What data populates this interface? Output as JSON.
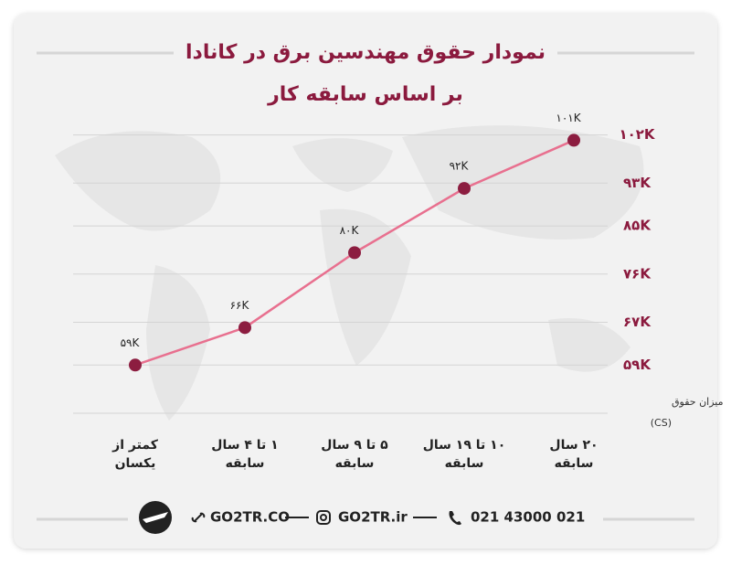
{
  "chart_data": {
    "type": "line",
    "title": "نمودار حقوق مهندسین برق در کانادا",
    "subtitle": "بر اساس سابقه کار",
    "categories": [
      [
        "کمتر از",
        "یکسان"
      ],
      [
        "۱ تا ۴ سال",
        "سابقه"
      ],
      [
        "۵ تا ۹ سال",
        "سابقه"
      ],
      [
        "۱۰ تا ۱۹ سال",
        "سابقه"
      ],
      [
        "۲۰ سال",
        "سابقه"
      ]
    ],
    "values": [
      59000,
      66000,
      80000,
      92000,
      101000
    ],
    "value_labels": [
      "۵۹K",
      "۶۶K",
      "۸۰K",
      "۹۲K",
      "۱۰۱K"
    ],
    "color": "#e8708f",
    "point_color": "#8c1d40",
    "y_label": [
      "میزان حقوق",
      "(CS)"
    ],
    "ylim": [
      50000,
      105000
    ],
    "yticks": [
      {
        "value": 59000,
        "label": "۵۹K"
      },
      {
        "value": 67000,
        "label": "۶۷K"
      },
      {
        "value": 76000,
        "label": "۷۶K"
      },
      {
        "value": 85000,
        "label": "۸۵K"
      },
      {
        "value": 93000,
        "label": "۹۳K"
      },
      {
        "value": 102000,
        "label": "۱۰۲K"
      }
    ],
    "grid": true
  },
  "footer": {
    "website": "GO2TR.CO",
    "instagram": "GO2TR.ir",
    "phone": "021 43000 021"
  }
}
